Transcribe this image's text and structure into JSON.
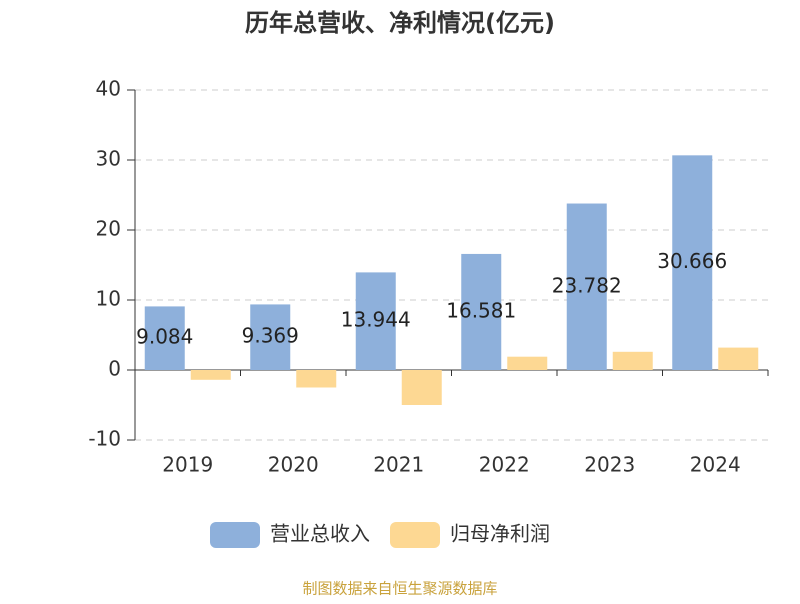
{
  "chart_data": {
    "type": "bar",
    "title": "历年总营收、净利情况(亿元)",
    "categories": [
      "2019",
      "2020",
      "2021",
      "2022",
      "2023",
      "2024"
    ],
    "series": [
      {
        "name": "营业总收入",
        "color": "#8eb0db",
        "values": [
          9.084,
          9.369,
          13.944,
          16.581,
          23.782,
          30.666
        ]
      },
      {
        "name": "归母净利润",
        "color": "#fdd893",
        "values": [
          -1.4,
          -2.5,
          -5.0,
          1.9,
          2.6,
          3.2
        ]
      }
    ],
    "ylim": [
      -10,
      40
    ],
    "yticks": [
      -10,
      0,
      10,
      20,
      30,
      40
    ],
    "grid": true,
    "legend": "bottom",
    "source": "制图数据来自恒生聚源数据库"
  }
}
